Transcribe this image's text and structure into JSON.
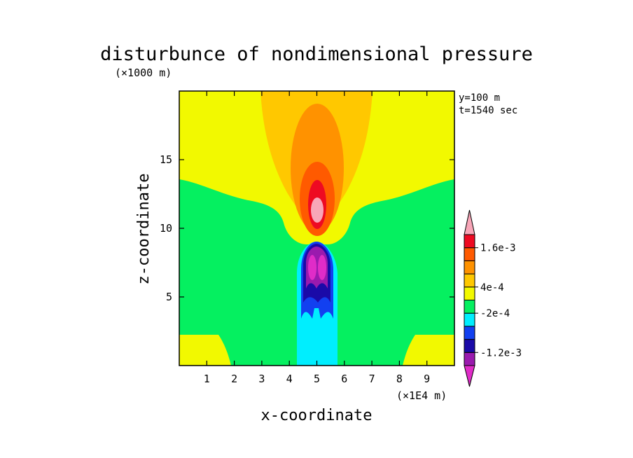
{
  "chart_data": {
    "type": "contour",
    "title": "disturbunce of nondimensional pressure",
    "xlabel": "x-coordinate",
    "ylabel": "z-coordinate",
    "x_unit": "(×1E4 m)",
    "y_unit": "(×1000 m)",
    "info": [
      "y=100 m",
      "t=1540 sec"
    ],
    "xlim": [
      0,
      10
    ],
    "ylim": [
      0,
      20
    ],
    "x_ticks": [
      "1",
      "2",
      "3",
      "4",
      "5",
      "6",
      "7",
      "8",
      "9"
    ],
    "y_ticks": [
      "5",
      "10",
      "15"
    ],
    "colorbar": {
      "levels": [
        "-1.6e-3",
        "-1.2e-3",
        "-8e-4",
        "-4e-4",
        "-2e-4",
        "0",
        "4e-4",
        "8e-4",
        "1.2e-3",
        "1.6e-3",
        "2e-3"
      ],
      "labels": [
        "1.6e-3",
        "4e-4",
        "-2e-4",
        "-1.2e-3"
      ],
      "colors": [
        "#e02cc8",
        "#9a1aae",
        "#1a0aa8",
        "#1240f0",
        "#00eefe",
        "#05f060",
        "#f2f900",
        "#ffc800",
        "#ff9200",
        "#ff5a00",
        "#ee0a22",
        "#f8a6b8"
      ]
    },
    "regions": [
      {
        "color": "#f2f900",
        "description": "upper-background"
      },
      {
        "color": "#05f060",
        "description": "mid-layer"
      },
      {
        "color": "#ffc800",
        "description": "upper-column"
      },
      {
        "color": "#ff9200",
        "description": "upper-core"
      },
      {
        "color": "#ff5a00",
        "description": "upper-core"
      },
      {
        "color": "#ee0a22",
        "description": "upper-core"
      },
      {
        "color": "#f8a6b8",
        "description": "upper-max"
      },
      {
        "color": "#00eefe",
        "description": "lower-column"
      },
      {
        "color": "#1240f0",
        "description": "lower-core"
      },
      {
        "color": "#1a0aa8",
        "description": "lower-core"
      },
      {
        "color": "#9a1aae",
        "description": "lower-core"
      },
      {
        "color": "#e02cc8",
        "description": "lower-min"
      }
    ]
  }
}
